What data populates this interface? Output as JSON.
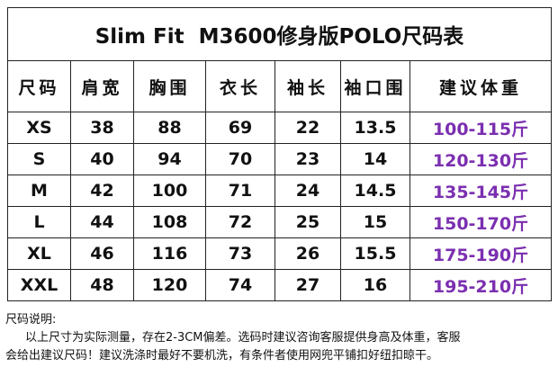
{
  "title": "Slim Fit  M3600修身版POLO尺码表",
  "table": {
    "header": [
      "尺码",
      "肩宽",
      "胸围",
      "衣长",
      "袖长",
      "袖口围",
      "建议体重"
    ],
    "rows": [
      [
        "XS",
        38,
        88,
        69,
        22,
        13.5,
        "100-115斤"
      ],
      [
        "S",
        40,
        94,
        70,
        23,
        14,
        "120-130斤"
      ],
      [
        "M",
        42,
        100,
        71,
        24,
        14.5,
        "135-145斤"
      ],
      [
        "L",
        44,
        108,
        72,
        25,
        15,
        "150-170斤"
      ],
      [
        "XL",
        46,
        116,
        73,
        26,
        15.5,
        "175-190斤"
      ],
      [
        "XXL",
        48,
        120,
        74,
        27,
        16,
        "195-210斤"
      ]
    ]
  },
  "notes": {
    "heading": "尺码说明:",
    "lines": [
      "以上尺寸为实际测量，存在2-3CM偏差。选码时建议咨询客服提供身高及体重，客服",
      "会给出建议尺码！建议洗涤时最好不要机洗，有条件者使用网兜平铺扣好纽扣晾干。"
    ]
  }
}
